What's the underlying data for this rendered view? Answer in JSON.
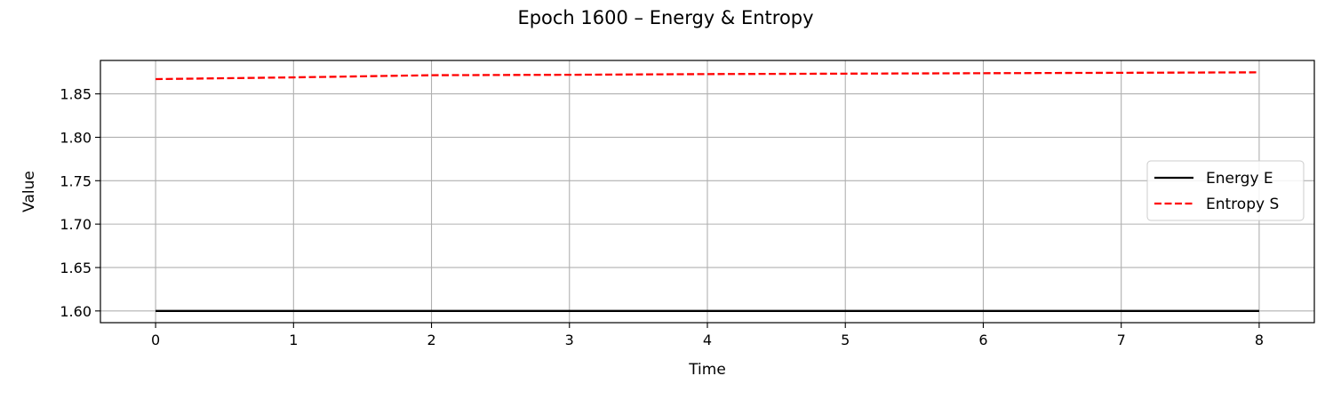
{
  "chart_data": {
    "type": "line",
    "title": "Epoch 1600 – Energy & Entropy",
    "xlabel": "Time",
    "ylabel": "Value",
    "xlim": [
      -0.4,
      8.4
    ],
    "ylim": [
      1.5865,
      1.8885
    ],
    "x_ticks": [
      0,
      1,
      2,
      3,
      4,
      5,
      6,
      7,
      8
    ],
    "y_ticks": [
      1.6,
      1.65,
      1.7,
      1.75,
      1.8,
      1.85
    ],
    "grid": true,
    "legend_position": "center-right",
    "x": [
      0,
      1,
      2,
      3,
      4,
      5,
      6,
      7,
      8
    ],
    "series": [
      {
        "name": "Energy E",
        "values": [
          1.6,
          1.6,
          1.6,
          1.6,
          1.6,
          1.6,
          1.6,
          1.6,
          1.6
        ],
        "color": "#000000",
        "style": "solid"
      },
      {
        "name": "Entropy S",
        "values": [
          1.867,
          1.869,
          1.8715,
          1.872,
          1.8728,
          1.8733,
          1.8738,
          1.8743,
          1.8748
        ],
        "color": "#ff0000",
        "style": "dashed"
      }
    ]
  }
}
